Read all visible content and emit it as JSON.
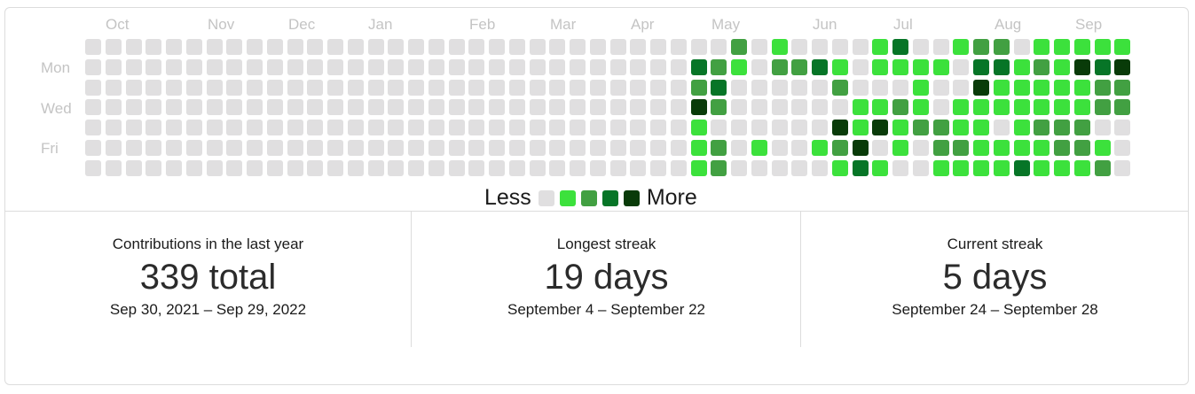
{
  "months": [
    "Oct",
    "Nov",
    "Dec",
    "Jan",
    "Feb",
    "Mar",
    "Apr",
    "May",
    "Jun",
    "Jul",
    "Aug",
    "Sep"
  ],
  "day_labels": [
    "Mon",
    "Wed",
    "Fri"
  ],
  "legend": {
    "less": "Less",
    "more": "More"
  },
  "colors": [
    "#e0dfe0",
    "#3ce13c",
    "#42a042",
    "#077527",
    "#093b09"
  ],
  "grid": [
    "0000000000000000000000000000000020100001300122011111",
    "0000000000000000000000000000003210223101111033121434",
    "0000000000000000000000000000002300000200010041111122",
    "0000000000000000000000000000004200000011210111111122",
    "0000000000000000000000000000001000000414122110122200",
    "0000000000000000000000000000001201001240102211112210",
    "0000000000000000000000000000001200000131001111311120"
  ],
  "stats": [
    {
      "label": "Contributions in the last year",
      "value": "339 total",
      "range": "Sep 30, 2021 – Sep 29, 2022"
    },
    {
      "label": "Longest streak",
      "value": "19 days",
      "range": "September 4 – September 22"
    },
    {
      "label": "Current streak",
      "value": "5 days",
      "range": "September 24 – September 28"
    }
  ]
}
